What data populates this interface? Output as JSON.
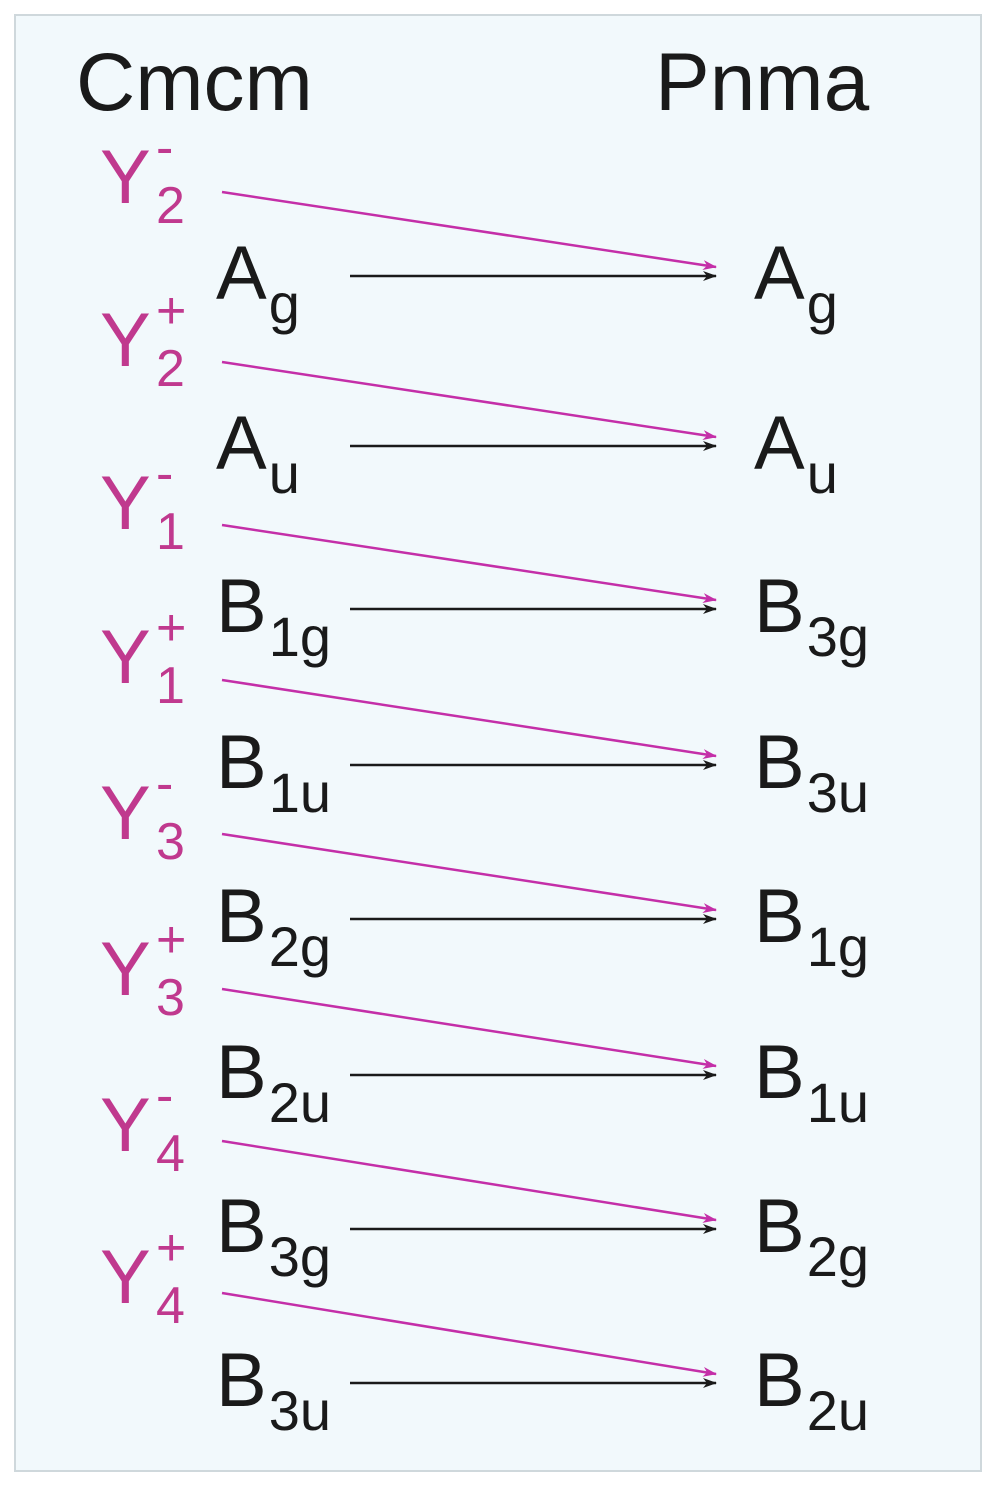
{
  "headers": {
    "left": "Cmcm",
    "right": "Pnma"
  },
  "colors": {
    "black_arrow": "#1a1a1a",
    "magenta_arrow": "#c42fa8",
    "y_label": "#c0398e",
    "background": "#f2f9fc"
  },
  "cmcm_irreps": [
    {
      "base": "A",
      "sub": "g"
    },
    {
      "base": "A",
      "sub": "u"
    },
    {
      "base": "B",
      "sub": "1g"
    },
    {
      "base": "B",
      "sub": "1u"
    },
    {
      "base": "B",
      "sub": "2g"
    },
    {
      "base": "B",
      "sub": "2u"
    },
    {
      "base": "B",
      "sub": "3g"
    },
    {
      "base": "B",
      "sub": "3u"
    }
  ],
  "pnma_irreps": [
    {
      "base": "A",
      "sub": "g"
    },
    {
      "base": "A",
      "sub": "u"
    },
    {
      "base": "B",
      "sub": "3g"
    },
    {
      "base": "B",
      "sub": "3u"
    },
    {
      "base": "B",
      "sub": "1g"
    },
    {
      "base": "B",
      "sub": "1u"
    },
    {
      "base": "B",
      "sub": "2g"
    },
    {
      "base": "B",
      "sub": "2u"
    }
  ],
  "y_irreps": [
    {
      "base": "Y",
      "sup": "-",
      "sub": "2"
    },
    {
      "base": "Y",
      "sup": "+",
      "sub": "2"
    },
    {
      "base": "Y",
      "sup": "-",
      "sub": "1"
    },
    {
      "base": "Y",
      "sup": "+",
      "sub": "1"
    },
    {
      "base": "Y",
      "sup": "-",
      "sub": "3"
    },
    {
      "base": "Y",
      "sup": "+",
      "sub": "3"
    },
    {
      "base": "Y",
      "sup": "-",
      "sub": "4"
    },
    {
      "base": "Y",
      "sup": "+",
      "sub": "4"
    }
  ]
}
